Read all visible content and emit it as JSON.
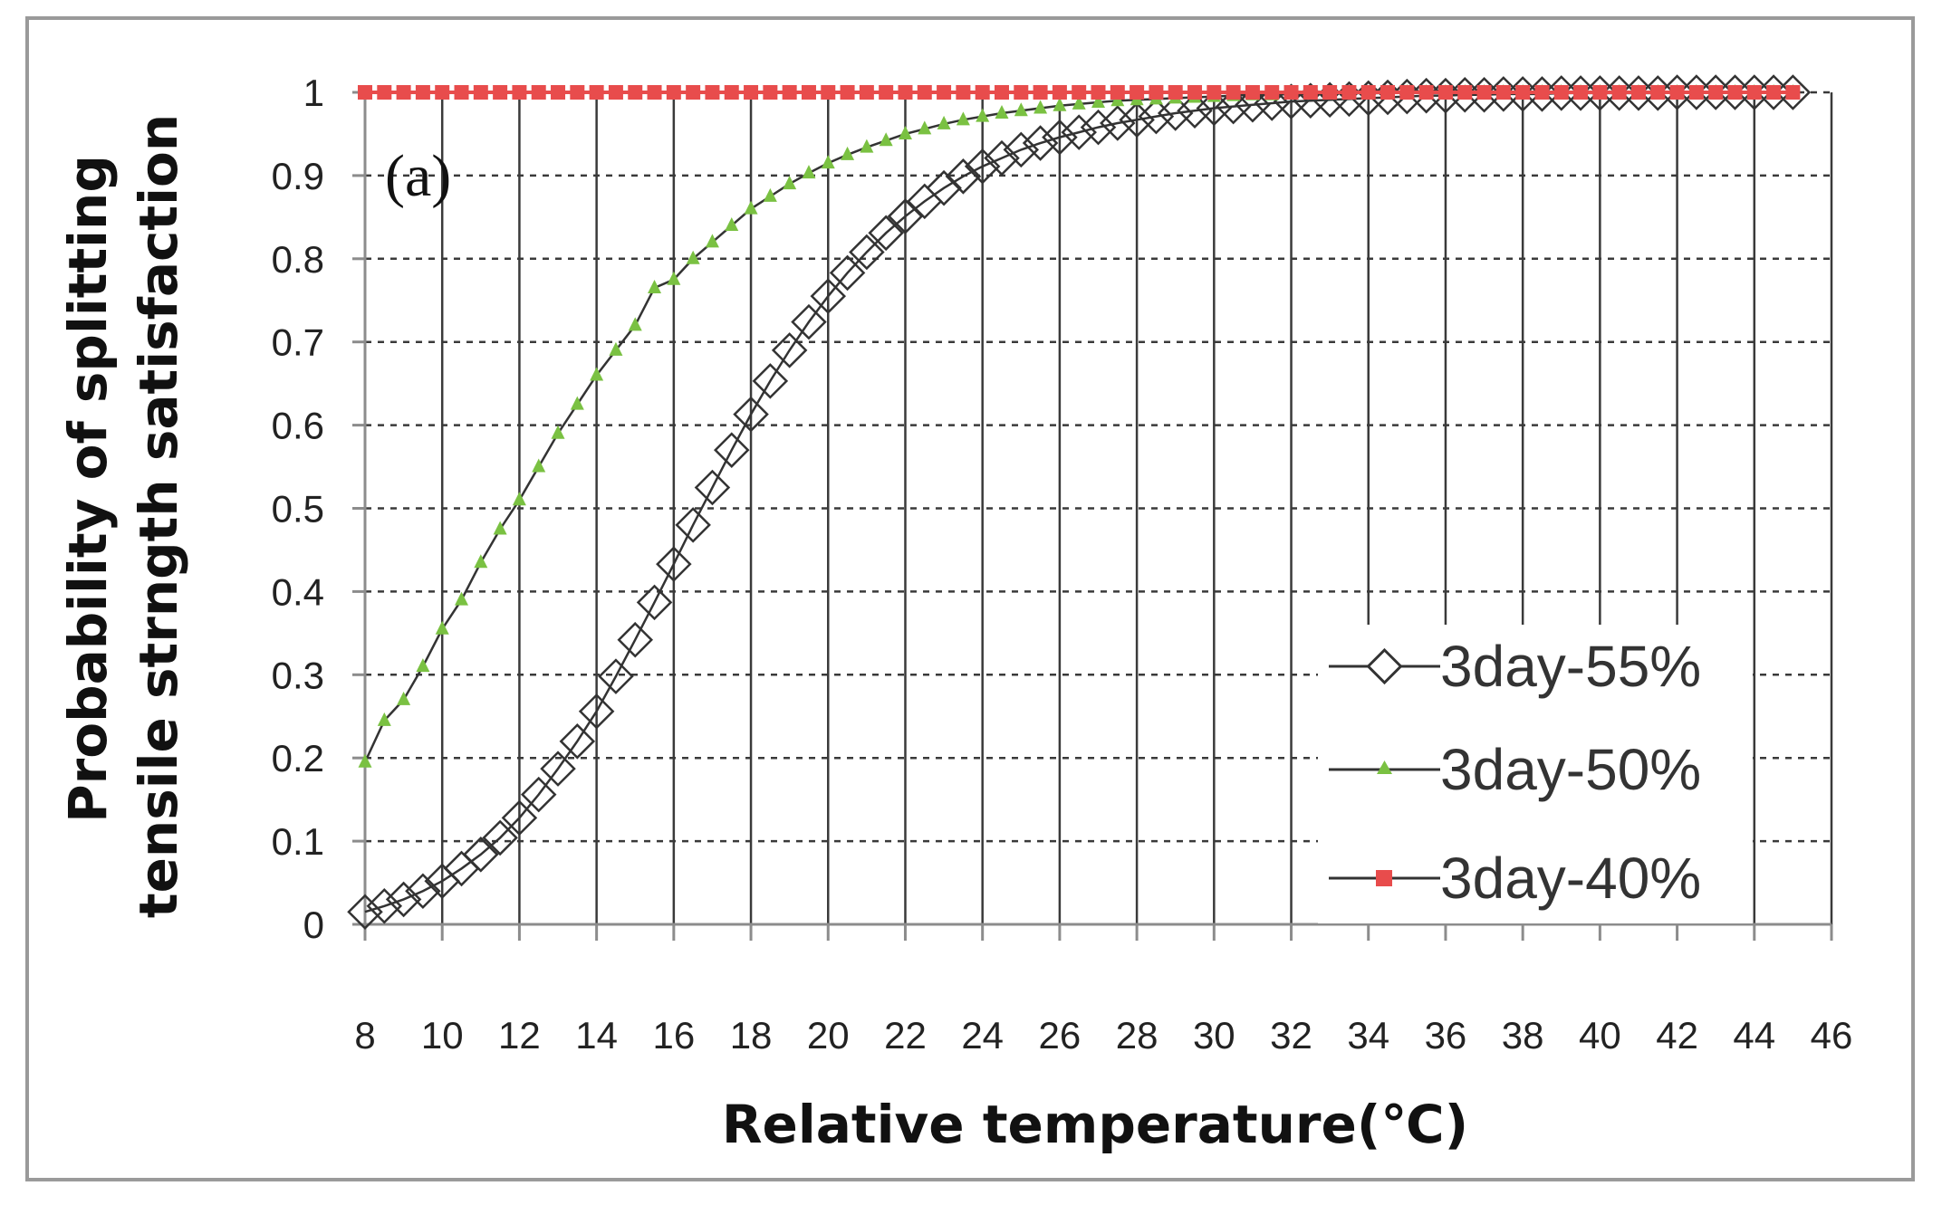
{
  "chart_data": {
    "type": "line",
    "panel_label": "(a)",
    "title": "",
    "xlabel": "Relative temperature(℃)",
    "ylabel_lines": [
      "Probability of splitting",
      "tensile strngth satisfaction"
    ],
    "xlim": [
      8,
      46
    ],
    "ylim": [
      0,
      1
    ],
    "x_ticks": [
      8,
      10,
      12,
      14,
      16,
      18,
      20,
      22,
      24,
      26,
      28,
      30,
      32,
      34,
      36,
      38,
      40,
      42,
      44,
      46
    ],
    "y_ticks": [
      0,
      0.1,
      0.2,
      0.3,
      0.4,
      0.5,
      0.6,
      0.7,
      0.8,
      0.9,
      1
    ],
    "y_tick_labels": [
      "0",
      "0.1",
      "0.2",
      "0.3",
      "0.4",
      "0.5",
      "0.6",
      "0.7",
      "0.8",
      "0.9",
      "1"
    ],
    "grid": {
      "horizontal": "dashed",
      "vertical": "solid"
    },
    "legend_position": "right",
    "series": [
      {
        "name": "3day-55%",
        "marker": "diamond-open",
        "color": "#333333",
        "x_start": 8,
        "x_end": 45,
        "x_step": 0.5,
        "values": [
          0.015,
          0.022,
          0.03,
          0.04,
          0.052,
          0.067,
          0.084,
          0.104,
          0.128,
          0.156,
          0.187,
          0.22,
          0.256,
          0.298,
          0.342,
          0.387,
          0.433,
          0.48,
          0.525,
          0.57,
          0.613,
          0.653,
          0.69,
          0.724,
          0.755,
          0.783,
          0.808,
          0.831,
          0.851,
          0.869,
          0.885,
          0.899,
          0.911,
          0.921,
          0.931,
          0.939,
          0.946,
          0.952,
          0.958,
          0.963,
          0.967,
          0.971,
          0.975,
          0.978,
          0.981,
          0.983,
          0.985,
          0.987,
          0.989,
          0.99,
          0.991,
          0.992,
          0.993,
          0.994,
          0.995,
          0.996,
          0.996,
          0.997,
          0.997,
          0.998,
          0.998,
          0.998,
          0.999,
          0.999,
          0.999,
          0.999,
          0.999,
          0.999,
          1.0,
          1.0,
          1.0,
          1.0,
          1.0,
          1.0,
          1.0
        ]
      },
      {
        "name": "3day-50%",
        "marker": "triangle",
        "color": "#7ac142",
        "x_start": 8,
        "x_end": 45,
        "x_step": 0.5,
        "values": [
          0.195,
          0.245,
          0.27,
          0.31,
          0.355,
          0.39,
          0.435,
          0.475,
          0.51,
          0.55,
          0.59,
          0.625,
          0.66,
          0.69,
          0.72,
          0.765,
          0.775,
          0.8,
          0.82,
          0.84,
          0.86,
          0.875,
          0.89,
          0.903,
          0.915,
          0.925,
          0.934,
          0.942,
          0.95,
          0.956,
          0.962,
          0.967,
          0.971,
          0.975,
          0.978,
          0.981,
          0.984,
          0.986,
          0.988,
          0.99,
          0.991,
          0.992,
          0.993,
          0.994,
          0.995,
          0.996,
          0.997,
          0.997,
          0.998,
          0.998,
          0.999,
          0.999,
          0.999,
          0.999,
          1.0,
          1.0,
          1.0,
          1.0,
          1.0,
          1.0,
          1.0,
          1.0,
          1.0,
          1.0,
          1.0,
          1.0,
          1.0,
          1.0,
          1.0,
          1.0,
          1.0,
          1.0,
          1.0,
          1.0,
          1.0
        ]
      },
      {
        "name": "3day-40%",
        "marker": "square",
        "color": "#e84c4c",
        "x_start": 8,
        "x_end": 45,
        "x_step": 0.5,
        "constant_value": 1.0
      }
    ]
  }
}
